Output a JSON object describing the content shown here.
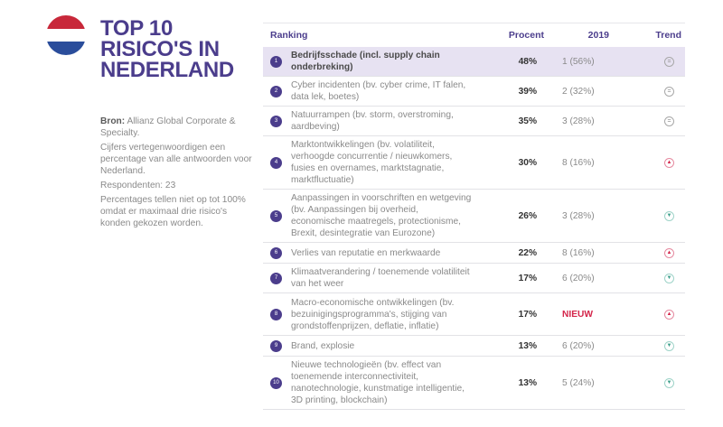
{
  "flag": {
    "name": "netherlands-flag",
    "colors": [
      "#c8283a",
      "#ffffff",
      "#2a4d9b"
    ]
  },
  "title": [
    "TOP 10",
    "RISICO'S IN",
    "NEDERLAND"
  ],
  "sidebar": {
    "source_label": "Bron:",
    "source_text": "Allianz Global Corporate & Specialty.",
    "note1": "Cijfers vertegenwoordigen een percentage van alle antwoorden voor Nederland.",
    "respondents": "Respondenten: 23",
    "note2": "Percentages tellen niet op tot 100% omdat er maximaal drie risico's konden gekozen worden."
  },
  "table": {
    "headers": {
      "ranking": "Ranking",
      "percent": "Procent",
      "prev_year": "2019",
      "trend": "Trend"
    },
    "rows": [
      {
        "rank": "1",
        "risk": "Bedrijfsschade (incl. supply chain onderbreking)",
        "percent": "48%",
        "prev": "1 (56%)",
        "trend": "equal",
        "trend_glyph": "=",
        "highlight": true
      },
      {
        "rank": "2",
        "risk": "Cyber incidenten (bv. cyber crime, IT falen, data lek, boetes)",
        "percent": "39%",
        "prev": "2 (32%)",
        "trend": "equal",
        "trend_glyph": "="
      },
      {
        "rank": "3",
        "risk": "Natuurrampen (bv. storm, overstroming, aardbeving)",
        "percent": "35%",
        "prev": "3 (28%)",
        "trend": "equal",
        "trend_glyph": "="
      },
      {
        "rank": "4",
        "risk": "Marktontwikkelingen (bv.  volatiliteit, verhoogde concurrentie / nieuwkomers, fusies en overnames, marktstagnatie, marktfluctuatie)",
        "percent": "30%",
        "prev": "8 (16%)",
        "trend": "up",
        "trend_glyph": "▲"
      },
      {
        "rank": "5",
        "risk": "Aanpassingen in voorschriften en wetgeving (bv. Aanpassingen bij overheid, economische maatregels, protectionisme, Brexit, desintegratie van Eurozone)",
        "percent": "26%",
        "prev": "3 (28%)",
        "trend": "down",
        "trend_glyph": "▼"
      },
      {
        "rank": "6",
        "risk": "Verlies van reputatie en merkwaarde",
        "percent": "22%",
        "prev": "8 (16%)",
        "trend": "up",
        "trend_glyph": "▲"
      },
      {
        "rank": "7",
        "risk": "Klimaatverandering / toenemende volatiliteit van het weer",
        "percent": "17%",
        "prev": "6 (20%)",
        "trend": "down",
        "trend_glyph": "▼"
      },
      {
        "rank": "8",
        "risk": "Macro-economische ontwikkelingen (bv. bezuinigingsprogramma's, stijging van grondstoffenprijzen, deflatie, inflatie)",
        "percent": "17%",
        "prev": "NIEUW",
        "prev_is_new": true,
        "trend": "up",
        "trend_glyph": "▲"
      },
      {
        "rank": "9",
        "risk": "Brand, explosie",
        "percent": "13%",
        "prev": "6 (20%)",
        "trend": "down",
        "trend_glyph": "▼"
      },
      {
        "rank": "10",
        "risk": "Nieuwe technologieën (bv. effect van toenemende interconnectiviteit, nanotechnologie, kunstmatige intelligentie, 3D printing, blockchain)",
        "percent": "13%",
        "prev": "5 (24%)",
        "trend": "down",
        "trend_glyph": "▼"
      }
    ]
  },
  "colors": {
    "accent": "#4b3d8c",
    "highlight_row": "#e7e2f2",
    "new_label": "#d4254a",
    "trend_up": "#d4254a",
    "trend_down": "#3c9e8a"
  }
}
